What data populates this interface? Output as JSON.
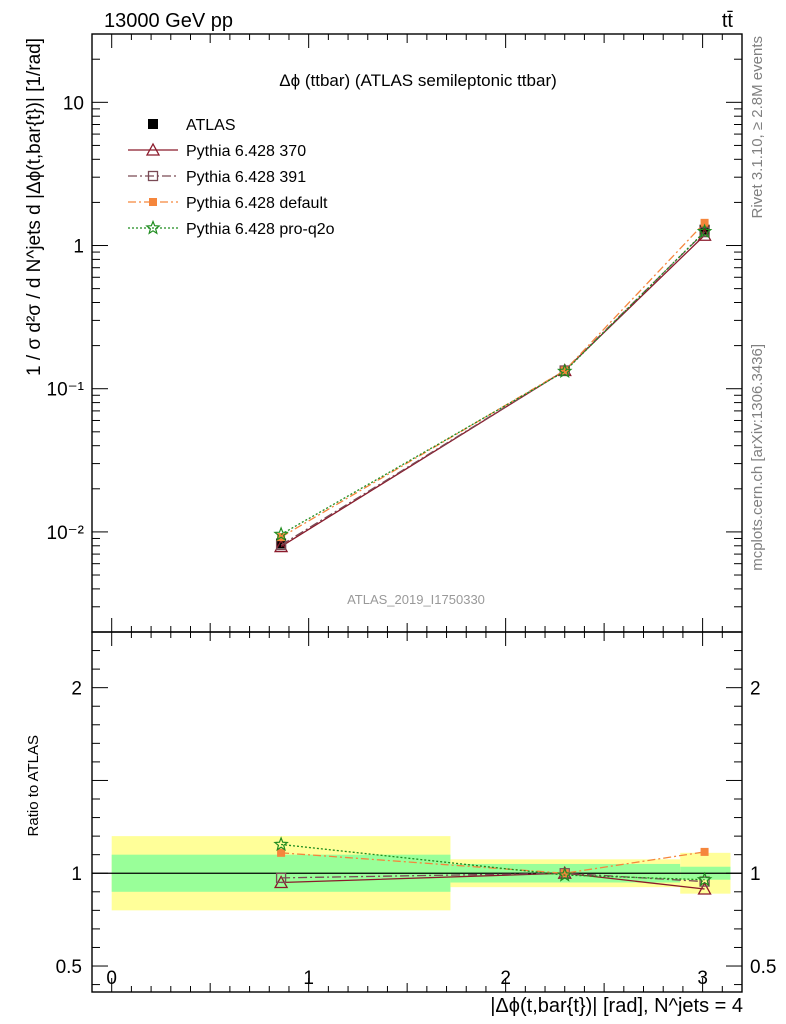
{
  "header": {
    "left": "13000 GeV pp",
    "right": "tt̄"
  },
  "side_labels": {
    "rivet": "Rivet 3.1.10, ≥ 2.8M events",
    "mcplots": "mcplots.cern.ch [arXiv:1306.3436]"
  },
  "chart_data": {
    "type": "line",
    "title": "Δϕ (ttbar) (ATLAS semileptonic ttbar)",
    "watermark": "ATLAS_2019_I1750330",
    "ylabel": "1 / σ d²σ / d N^jets d |Δϕ(t,bar{t})| [1/rad]",
    "xlabel": "|Δϕ(t,bar{t})| [rad], N^jets = 4",
    "ratio_ylabel": "Ratio to ATLAS",
    "x_range": [
      -0.1,
      3.2
    ],
    "y_range": [
      0.002,
      30
    ],
    "y_scale": "log",
    "ratio_range": [
      0.36,
      2.3
    ],
    "x_ticks": [
      "0",
      "1",
      "2",
      "3"
    ],
    "y_ticks": [
      "10",
      "1",
      "10⁻¹",
      "10⁻²"
    ],
    "ratio_ticks": [
      "2",
      "1",
      "0.5"
    ],
    "bin_edges": [
      0,
      1.7198,
      2.8864,
      3.1416
    ],
    "data": {
      "name": "ATLAS",
      "x": [
        0.86,
        2.3,
        3.01
      ],
      "y": [
        0.0083,
        0.134,
        1.29
      ]
    },
    "band_inner": [
      0.1,
      0.05,
      0.035
    ],
    "band_outer": [
      0.2,
      0.075,
      0.11
    ],
    "series": [
      {
        "name": "Pythia 6.428 370",
        "color": "#8b1a2b",
        "marker": "triangle",
        "dash": "",
        "x": [
          0.86,
          2.3,
          3.01
        ],
        "y": [
          0.0079,
          0.134,
          1.18
        ],
        "ratio": [
          0.95,
          1.0,
          0.915
        ]
      },
      {
        "name": "Pythia 6.428 391",
        "color": "#7a4a55",
        "marker": "square-open",
        "dash": "9,3,2,3",
        "x": [
          0.86,
          2.3,
          3.01
        ],
        "y": [
          0.0081,
          0.134,
          1.24
        ],
        "ratio": [
          0.975,
          1.0,
          0.955
        ]
      },
      {
        "name": "Pythia 6.428 default",
        "color": "#f5863c",
        "marker": "square-filled",
        "dash": "8,3,2,3",
        "x": [
          0.86,
          2.3,
          3.01
        ],
        "y": [
          0.0092,
          0.134,
          1.44
        ],
        "ratio": [
          1.11,
          1.0,
          1.115
        ]
      },
      {
        "name": "Pythia 6.428 pro-q2o",
        "color": "#1f8c1f",
        "marker": "star",
        "dash": "2,2",
        "x": [
          0.86,
          2.3,
          3.01
        ],
        "y": [
          0.0096,
          0.132,
          1.25
        ],
        "ratio": [
          1.155,
          0.99,
          0.965
        ]
      }
    ]
  }
}
